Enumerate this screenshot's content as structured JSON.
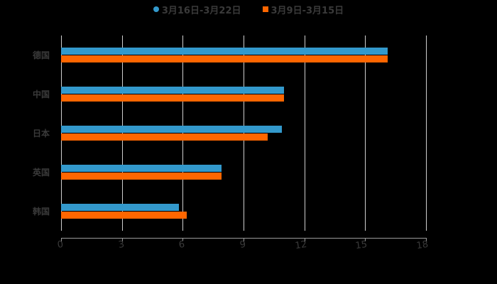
{
  "chart_data": {
    "type": "bar",
    "orientation": "horizontal",
    "title": "",
    "xlabel": "",
    "ylabel": "",
    "categories": [
      "德国",
      "中国",
      "日本",
      "英国",
      "韩国"
    ],
    "series": [
      {
        "name": "3月16日-3月22日",
        "color": "#3399CC",
        "marker": "circle",
        "values": [
          16.1,
          11.0,
          10.9,
          7.9,
          5.8
        ]
      },
      {
        "name": "3月9日-3月15日",
        "color": "#FF6600",
        "marker": "square",
        "values": [
          16.1,
          11.0,
          10.2,
          7.9,
          6.2
        ]
      }
    ],
    "xlim": [
      0,
      18
    ],
    "xticks": [
      "0",
      "3",
      "6",
      "9",
      "12",
      "15",
      "18"
    ],
    "grid": {
      "vertical": true,
      "horizontal": false
    },
    "legend_position": "top"
  },
  "legend": {
    "items": [
      {
        "label": "3月16日-3月22日",
        "color": "#3399CC"
      },
      {
        "label": "3月9日-3月15日",
        "color": "#FF6600"
      }
    ]
  },
  "axis": {
    "ticks": [
      "0",
      "3",
      "6",
      "9",
      "12",
      "15",
      "18"
    ]
  },
  "categories": [
    "德国",
    "中国",
    "日本",
    "英国",
    "韩国"
  ]
}
